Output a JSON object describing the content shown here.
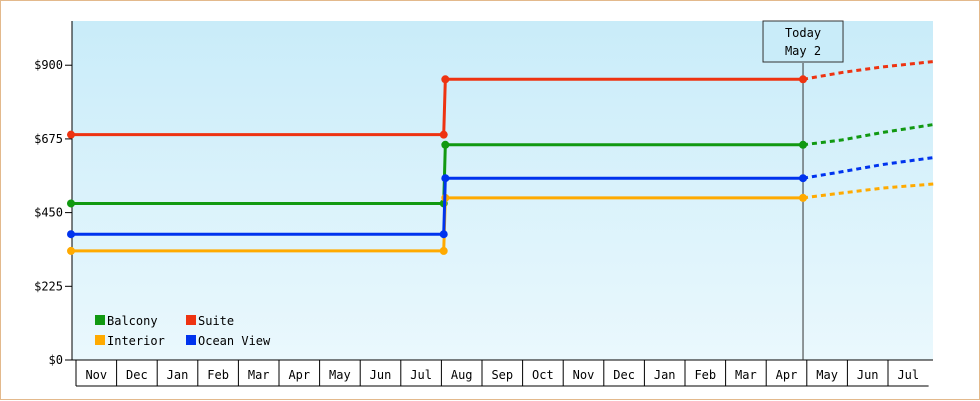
{
  "chart_data": {
    "type": "line",
    "x": [
      "Nov",
      "Dec",
      "Jan",
      "Feb",
      "Mar",
      "Apr",
      "May",
      "Jun",
      "Jul",
      "Aug",
      "Sep",
      "Oct",
      "Nov",
      "Dec",
      "Jan",
      "Feb",
      "Mar",
      "Apr",
      "May",
      "Jun",
      "Jul"
    ],
    "ylim": [
      0,
      1035
    ],
    "y_ticks": [
      {
        "value": 0,
        "label": "$0"
      },
      {
        "value": 225,
        "label": "$225"
      },
      {
        "value": 450,
        "label": "$450"
      },
      {
        "value": 675,
        "label": "$675"
      },
      {
        "value": 900,
        "label": "$900"
      }
    ],
    "grid": false,
    "legend_position": "bottom-left",
    "today_marker": {
      "line1": "Today",
      "line2": "May 2",
      "x_index": 18.03
    },
    "series": [
      {
        "name": "Balcony",
        "color": "#119911",
        "points": [
          [
            0,
            478
          ],
          [
            9.18,
            478
          ],
          [
            9.22,
            657
          ],
          [
            18.03,
            657
          ]
        ],
        "forecast": [
          [
            18.03,
            657
          ],
          [
            19,
            672
          ],
          [
            20,
            695
          ],
          [
            21.3,
            720
          ]
        ]
      },
      {
        "name": "Suite",
        "color": "#ee3311",
        "points": [
          [
            0,
            688
          ],
          [
            9.18,
            688
          ],
          [
            9.22,
            857
          ],
          [
            18.03,
            857
          ]
        ],
        "forecast": [
          [
            18.03,
            857
          ],
          [
            19,
            878
          ],
          [
            20,
            895
          ],
          [
            21.3,
            912
          ]
        ]
      },
      {
        "name": "Interior",
        "color": "#ffaa00",
        "points": [
          [
            0,
            333
          ],
          [
            9.18,
            333
          ],
          [
            9.22,
            495
          ],
          [
            18.03,
            495
          ]
        ],
        "forecast": [
          [
            18.03,
            495
          ],
          [
            19,
            510
          ],
          [
            20,
            525
          ],
          [
            21.3,
            538
          ]
        ]
      },
      {
        "name": "Ocean View",
        "color": "#0033ee",
        "points": [
          [
            0,
            384
          ],
          [
            9.18,
            384
          ],
          [
            9.22,
            555
          ],
          [
            18.03,
            555
          ]
        ],
        "forecast": [
          [
            18.03,
            555
          ],
          [
            19,
            575
          ],
          [
            20,
            597
          ],
          [
            21.3,
            619
          ]
        ]
      }
    ]
  }
}
